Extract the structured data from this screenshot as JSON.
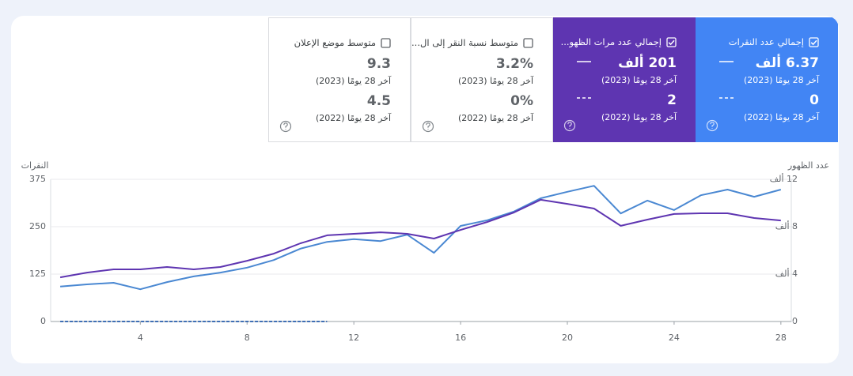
{
  "cards": [
    {
      "title": "إجمالي عدد النقرات",
      "checked": true,
      "color": "#4285f4",
      "value_2023": "6.37 ألف",
      "period_2023": "آخر 28 يومًا (2023)",
      "value_2022": "0",
      "period_2022": "آخر 28 يومًا (2022)"
    },
    {
      "title": "إجمالي عدد مرات الظهو...",
      "checked": true,
      "color": "#5e35b1",
      "value_2023": "201 ألف",
      "period_2023": "آخر 28 يومًا (2023)",
      "value_2022": "2",
      "period_2022": "آخر 28 يومًا (2022)"
    },
    {
      "title": "متوسط نسبة النقر إلى ال...",
      "checked": false,
      "color": "#ffffff",
      "value_2023": "3.2%",
      "period_2023": "آخر 28 يومًا (2023)",
      "value_2022": "0%",
      "period_2022": "آخر 28 يومًا (2022)"
    },
    {
      "title": "متوسط موضع الإعلان",
      "checked": false,
      "color": "#ffffff",
      "value_2023": "9.3",
      "period_2023": "آخر 28 يومًا (2023)",
      "value_2022": "4.5",
      "period_2022": "آخر 28 يومًا (2022)"
    }
  ],
  "chart_data": {
    "type": "line",
    "ylabel": "النقرات",
    "y2label": "عدد الظهور",
    "x": [
      1,
      2,
      3,
      4,
      5,
      6,
      7,
      8,
      9,
      10,
      11,
      12,
      13,
      14,
      15,
      16,
      17,
      18,
      19,
      20,
      21,
      22,
      23,
      24,
      25,
      26,
      27,
      28
    ],
    "xlim": [
      0.64,
      28.39
    ],
    "xticks": [
      4,
      8,
      12,
      16,
      20,
      24,
      28
    ],
    "ylim": [
      0,
      375
    ],
    "yticks": [
      0,
      125,
      250,
      375
    ],
    "y2lim": [
      0,
      12000
    ],
    "y2ticks": [
      0,
      {
        "value": 4000,
        "label": "4 ألف"
      },
      {
        "value": 8000,
        "label": "8 ألف"
      },
      {
        "value": 12000,
        "label": "12 ألف"
      }
    ],
    "grid": true,
    "series": [
      {
        "color": "#4a88d2",
        "values": [
          92,
          98,
          102,
          85,
          104,
          119,
          129,
          142,
          162,
          192,
          210,
          217,
          212,
          229,
          181,
          252,
          267,
          290,
          325,
          342,
          358,
          285,
          319,
          294,
          333,
          348,
          329,
          348
        ]
      },
      {
        "color": "#5e35b1",
        "axis": "y2",
        "values": [
          3730,
          4130,
          4400,
          4400,
          4600,
          4400,
          4600,
          5130,
          5730,
          6600,
          7270,
          7400,
          7530,
          7400,
          7000,
          7730,
          8400,
          9200,
          10270,
          9930,
          9530,
          8070,
          8600,
          9070,
          9130,
          9130,
          8730,
          8530
        ]
      },
      {
        "color": "#3f6fb5",
        "dashed": true,
        "values": [
          0,
          0,
          0,
          0,
          0,
          0,
          0,
          0,
          0,
          0,
          0,
          null,
          null,
          null,
          null,
          null,
          null,
          null,
          null,
          null,
          null,
          null,
          null,
          null,
          null,
          null,
          null,
          null
        ]
      }
    ]
  }
}
